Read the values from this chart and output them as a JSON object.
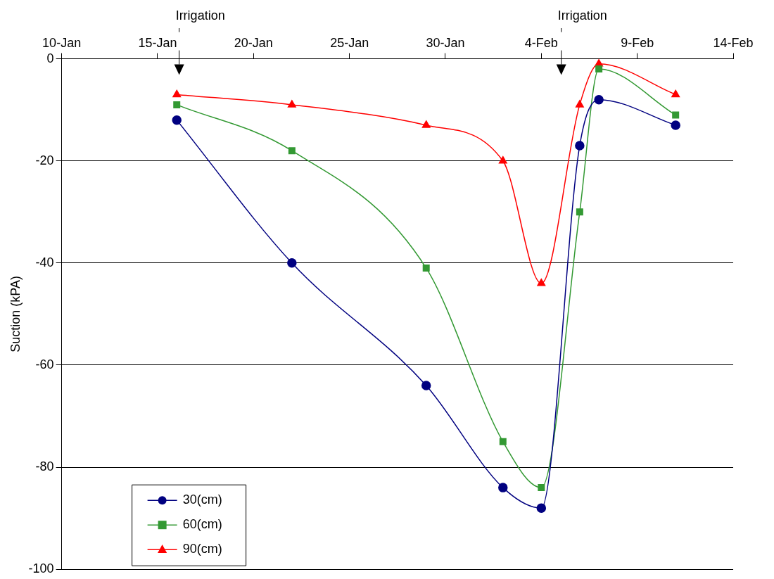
{
  "chart_data": {
    "type": "line",
    "ylabel": "Suction (kPA)",
    "x": [
      "--01-16",
      "--01-22",
      "--01-29",
      "--02-02",
      "--02-04",
      "--02-06",
      "--02-07",
      "--02-11"
    ],
    "series": [
      {
        "name": "30(cm)",
        "color": "#000080",
        "marker": "circle",
        "values": [
          -12,
          -40,
          -64,
          -84,
          -88,
          -17,
          -8,
          -13
        ]
      },
      {
        "name": "60(cm)",
        "color": "#339933",
        "marker": "square",
        "values": [
          -9,
          -18,
          -41,
          -75,
          -84,
          -30,
          -2,
          -11
        ]
      },
      {
        "name": "90(cm)",
        "color": "#ff0000",
        "marker": "triangle",
        "values": [
          -7,
          -9,
          -13,
          -20,
          -44,
          -9,
          -1,
          -7
        ]
      }
    ],
    "xlim": [
      "--01-10",
      "--02-14"
    ],
    "xticks": [
      {
        "value": "--01-10",
        "label": "10-Jan"
      },
      {
        "value": "--01-15",
        "label": "15-Jan"
      },
      {
        "value": "--01-20",
        "label": "20-Jan"
      },
      {
        "value": "--01-25",
        "label": "25-Jan"
      },
      {
        "value": "--01-30",
        "label": "30-Jan"
      },
      {
        "value": "--02-04",
        "label": "4-Feb"
      },
      {
        "value": "--02-09",
        "label": "9-Feb"
      },
      {
        "value": "--02-14",
        "label": "14-Feb"
      }
    ],
    "ylim": [
      -100,
      0
    ],
    "yticks": [
      0,
      -20,
      -40,
      -60,
      -80,
      -100
    ],
    "grid": "y",
    "legend": "bottom left",
    "annotations": [
      "Irrigation",
      "Irrigation"
    ]
  }
}
